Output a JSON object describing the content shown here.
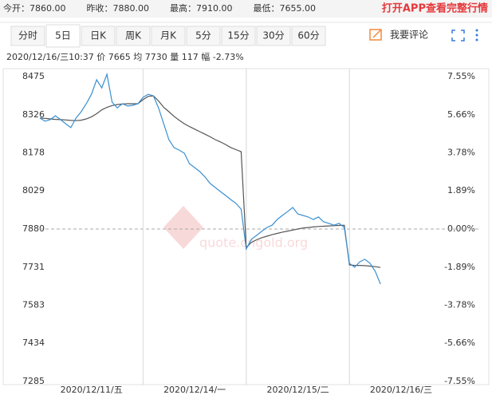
{
  "quote_bar": {
    "items": [
      {
        "label": "今开：",
        "value": "7860.00",
        "color": "#2e9e2e"
      },
      {
        "label": "昨收：",
        "value": "7880.00",
        "color": "#333333"
      },
      {
        "label": "最高：",
        "value": "7910.00",
        "color": "#e53935"
      },
      {
        "label": "最低：",
        "value": "7655.00",
        "color": "#2e9e2e"
      }
    ],
    "app_link": "打开APP查看完整行情"
  },
  "tabs": {
    "items": [
      "分时",
      "5日",
      "日K",
      "周K",
      "月K",
      "5分",
      "15分",
      "30分",
      "60分"
    ],
    "active": 1
  },
  "comment_button": "我要评论",
  "info_line": "2020/12/16/三10:37  价 7665  均 7730  量 117  幅 -2.73%",
  "watermark": "quote.cngold.org",
  "chart_data": {
    "type": "line",
    "xlim": [
      0,
      85
    ],
    "xticks": [
      {
        "value": 10,
        "label": "2020/12/11/五"
      },
      {
        "value": 30,
        "label": "2020/12/14/一"
      },
      {
        "value": 50,
        "label": "2020/12/15/二"
      },
      {
        "value": 70,
        "label": "2020/12/16/三"
      }
    ],
    "ylim": [
      7285,
      8475
    ],
    "yticks": [
      8475,
      8326,
      8178,
      8029,
      7880,
      7731,
      7583,
      7434,
      7285
    ],
    "y2lim": [
      -7.55,
      7.55
    ],
    "y2ticks": [
      {
        "value": 7.55,
        "label": "7.55%"
      },
      {
        "value": 5.66,
        "label": "5.66%"
      },
      {
        "value": 3.78,
        "label": "3.78%"
      },
      {
        "value": 1.89,
        "label": "1.89%"
      },
      {
        "value": 0,
        "label": "0.00%"
      },
      {
        "value": -1.89,
        "label": "-1.89%"
      },
      {
        "value": -3.78,
        "label": "-3.78%"
      },
      {
        "value": -5.66,
        "label": "-5.66%"
      },
      {
        "value": -7.55,
        "label": "-7.55%"
      }
    ],
    "up_color": "#e53935",
    "down_color": "#2e9e2e",
    "flat_color": "#333333",
    "series": [
      {
        "color": "#3a8fd0",
        "values": [
          8313,
          8301,
          8307,
          8322,
          8307,
          8291,
          8276,
          8313,
          8338,
          8369,
          8406,
          8463,
          8431,
          8484,
          8375,
          8353,
          8369,
          8360,
          8363,
          8369,
          8394,
          8406,
          8400,
          8353,
          8291,
          8229,
          8198,
          8188,
          8176,
          8135,
          8120,
          8104,
          8083,
          8058,
          8042,
          8026,
          8011,
          7995,
          7980,
          7958,
          7802,
          7840,
          7855,
          7871,
          7886,
          7895,
          7917,
          7933,
          7948,
          7964,
          7939,
          7933,
          7927,
          7917,
          7927,
          7908,
          7902,
          7895,
          7902,
          7886,
          7746,
          7731,
          7752,
          7762,
          7746,
          7715,
          7665
        ]
      },
      {
        "color": "#555555",
        "values": [
          8313,
          8312,
          8310,
          8308,
          8307,
          8306,
          8304,
          8303,
          8305,
          8310,
          8318,
          8330,
          8345,
          8355,
          8362,
          8366,
          8368,
          8369,
          8369,
          8369,
          8385,
          8398,
          8400,
          8380,
          8355,
          8338,
          8320,
          8305,
          8291,
          8280,
          8270,
          8260,
          8250,
          8240,
          8229,
          8220,
          8210,
          8198,
          8190,
          8182,
          7808,
          7828,
          7838,
          7846,
          7852,
          7858,
          7863,
          7868,
          7872,
          7876,
          7880,
          7884,
          7886,
          7888,
          7890,
          7891,
          7892,
          7893,
          7894,
          7895,
          7740,
          7738,
          7738,
          7737,
          7735,
          7733,
          7730
        ]
      }
    ]
  }
}
